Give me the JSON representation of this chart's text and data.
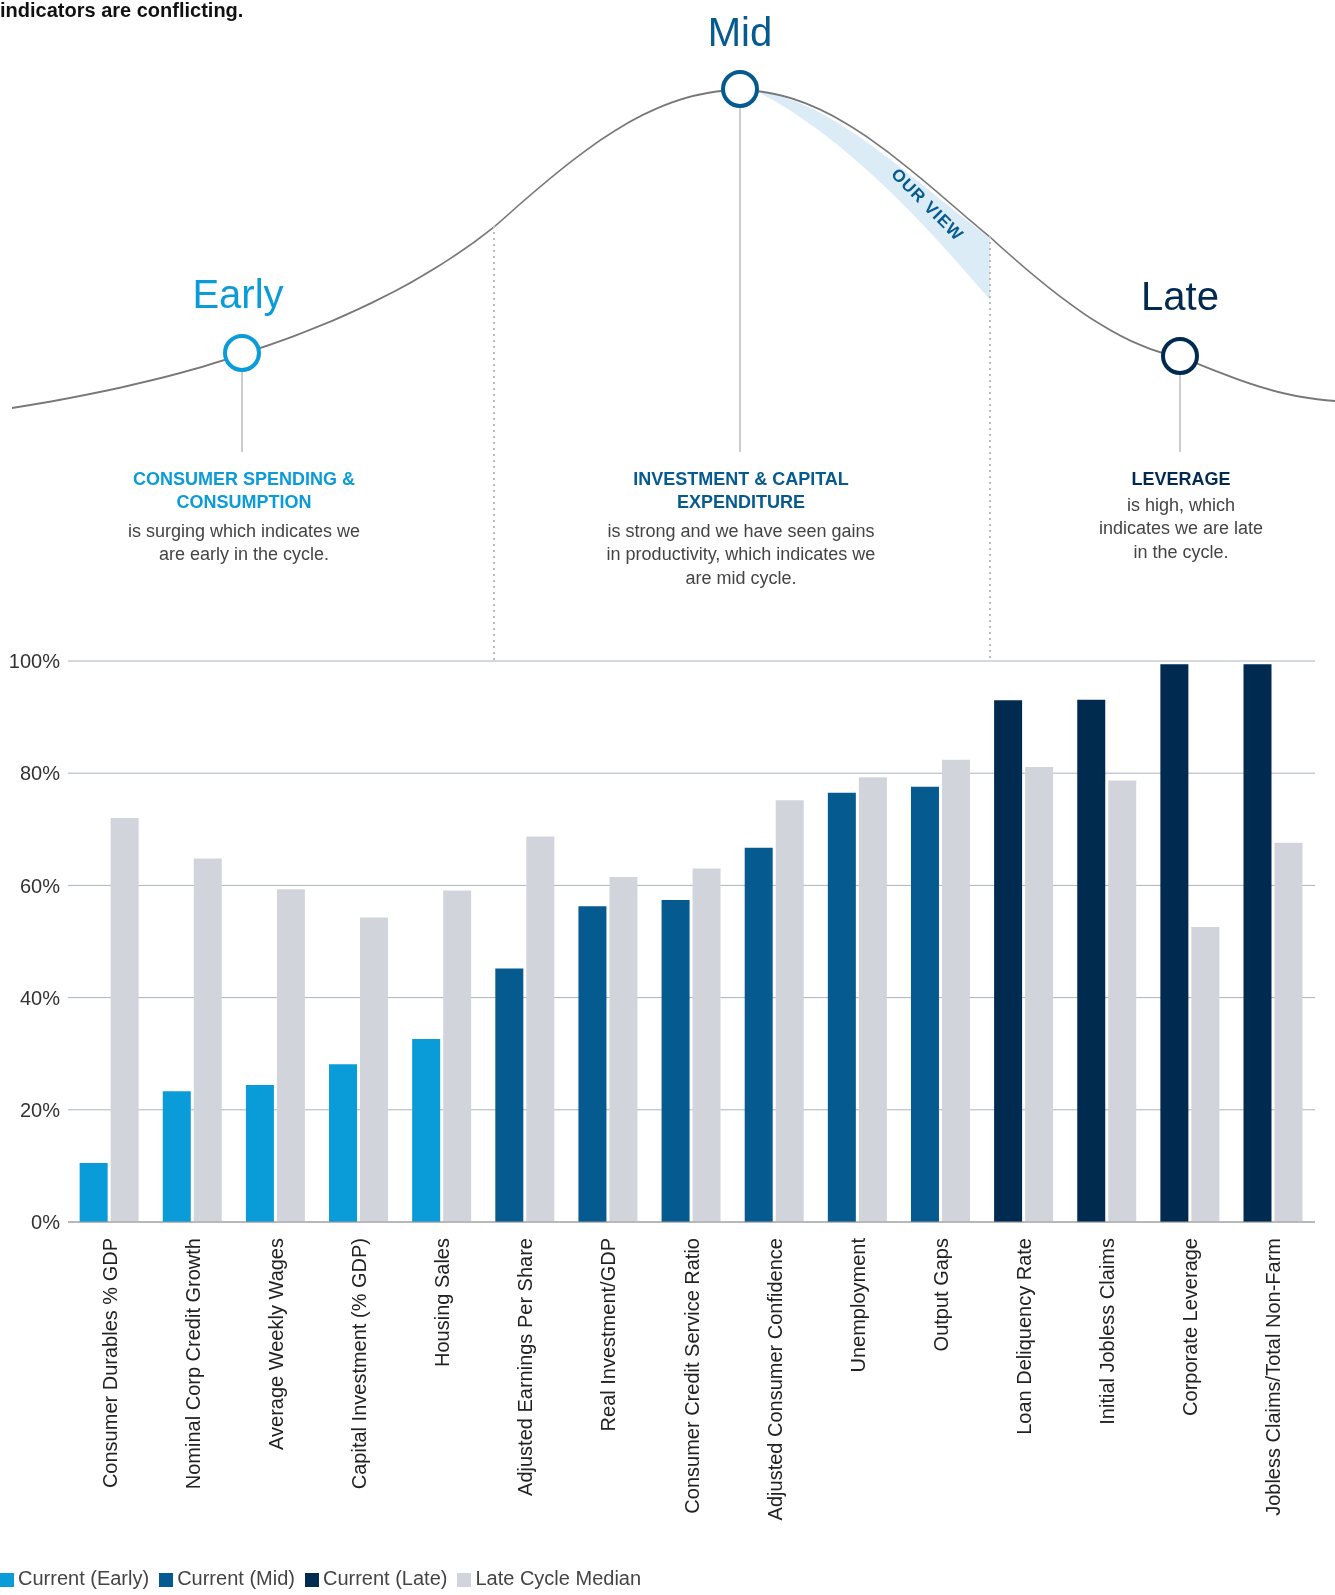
{
  "chart_data": {
    "type": "bar",
    "title": "indicators are conflicting.",
    "categories": [
      "Consumer Durables % GDP",
      "Nominal Corp Credit Growth",
      "Average Weekly Wages",
      "Capital Investment (% GDP)",
      "Housing Sales",
      "Adjusted Earnings Per Share",
      "Real Investment/GDP",
      "Consumer Credit Service Ratio",
      "Adjusted Consumer Confidence",
      "Unemployment",
      "Output Gaps",
      "Loan Deliquency Rate",
      "Initial Jobless Claims",
      "Corporate Leverage",
      "Jobless Claims/Total Non-Farm"
    ],
    "series": [
      {
        "name": "Current (Early)",
        "color": "#0a9bd9",
        "values": [
          10.5,
          23.3,
          24.4,
          28.1,
          32.6,
          null,
          null,
          null,
          null,
          null,
          null,
          null,
          null,
          null,
          null
        ]
      },
      {
        "name": "Current (Mid)",
        "color": "#055a8f",
        "values": [
          null,
          null,
          null,
          null,
          null,
          45.2,
          56.3,
          57.4,
          66.7,
          76.5,
          77.6,
          null,
          null,
          null,
          null
        ]
      },
      {
        "name": "Current (Late)",
        "color": "#002a50",
        "values": [
          null,
          null,
          null,
          null,
          null,
          null,
          null,
          null,
          null,
          null,
          null,
          93,
          93.1,
          99.4,
          99.4
        ]
      },
      {
        "name": "Late Cycle Median",
        "color": "#d1d5db",
        "values": [
          72,
          64.8,
          59.3,
          54.3,
          59.1,
          68.7,
          61.5,
          63,
          75.2,
          79.3,
          82.4,
          81.1,
          78.7,
          52.6,
          67.6
        ]
      }
    ],
    "ylim": [
      0,
      100
    ],
    "yticks": [
      {
        "value": 0,
        "label": "0%"
      },
      {
        "value": 20,
        "label": "20%"
      },
      {
        "value": 40,
        "label": "40%"
      },
      {
        "value": 60,
        "label": "60%"
      },
      {
        "value": 80,
        "label": "80%"
      },
      {
        "value": 100,
        "label": "100%"
      }
    ],
    "grid": "y",
    "legend": "bottom",
    "annotations": [
      "Early",
      "Mid",
      "Late",
      "OUR VIEW",
      "CONSUMER SPENDING & CONSUMPTION",
      "is surging which indicates we are early in the cycle.",
      "INVESTMENT & CAPITAL EXPENDITURE",
      "is strong and we have seen gains in productivity, which indicates we are mid cycle.",
      "LEVERAGE",
      "is high, which indicates we are late in the cycle."
    ]
  }
}
